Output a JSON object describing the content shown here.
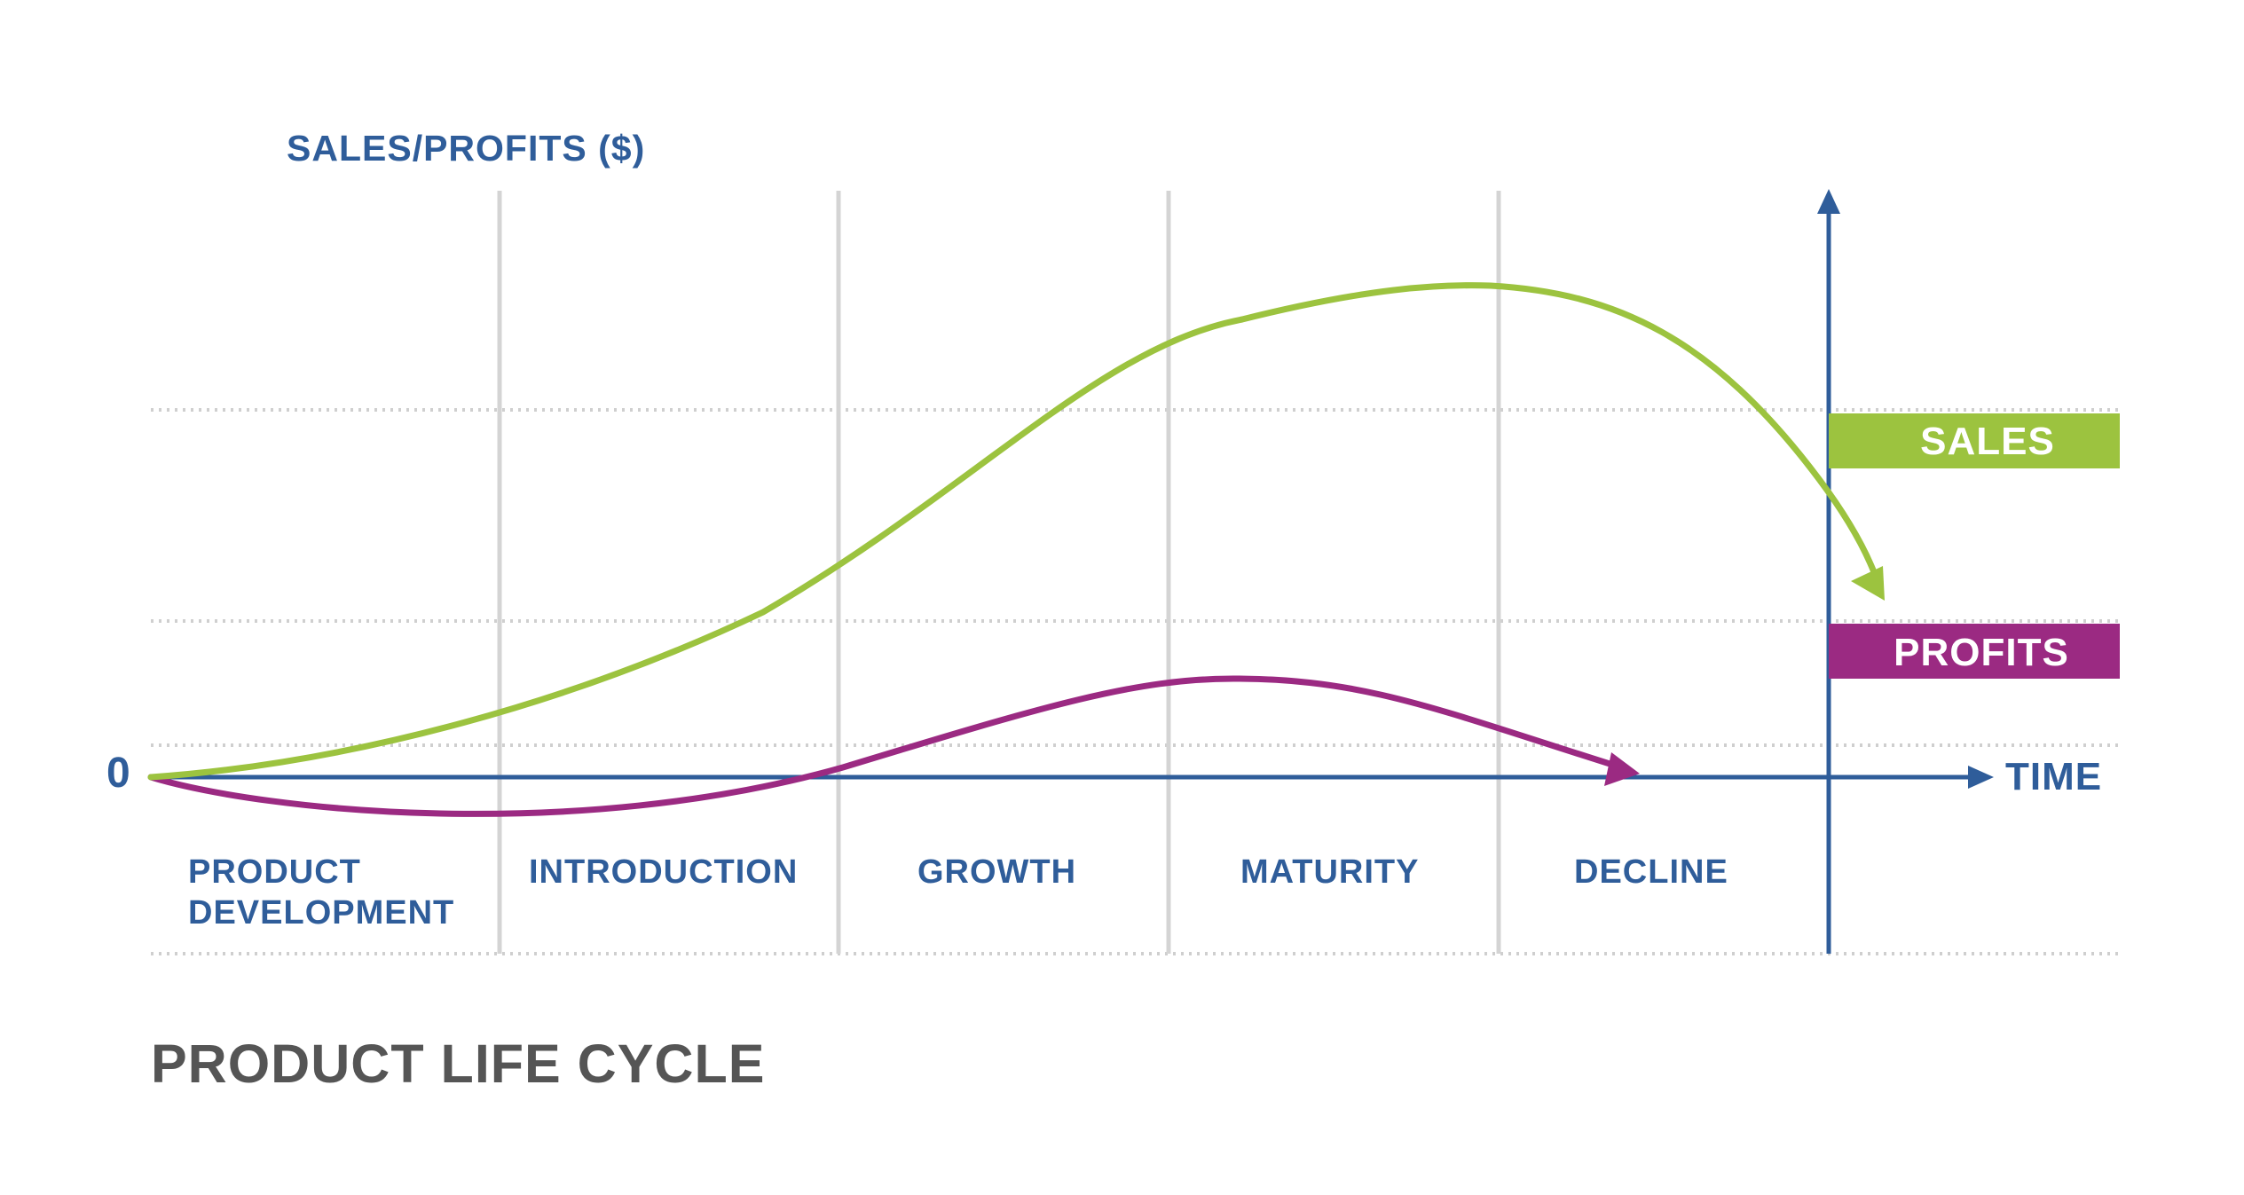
{
  "title": "PRODUCT LIFE CYCLE",
  "y_axis_title": "SALES/PROFITS ($)",
  "origin_label": "0",
  "x_axis_label": "TIME",
  "stages": [
    {
      "lines": [
        "PRODUCT",
        "DEVELOPMENT"
      ]
    },
    {
      "lines": [
        "INTRODUCTION"
      ]
    },
    {
      "lines": [
        "GROWTH"
      ]
    },
    {
      "lines": [
        "MATURITY"
      ]
    },
    {
      "lines": [
        "DECLINE"
      ]
    }
  ],
  "legend": {
    "sales": "SALES",
    "profits": "PROFITS"
  },
  "colors": {
    "axis_blue": "#2f5d9a",
    "sales_green": "#9cc33f",
    "profits_magenta": "#9b2a82",
    "title_gray": "#555555",
    "divider_gray": "#d4d4d4",
    "legend_text": "#ffffff"
  }
}
